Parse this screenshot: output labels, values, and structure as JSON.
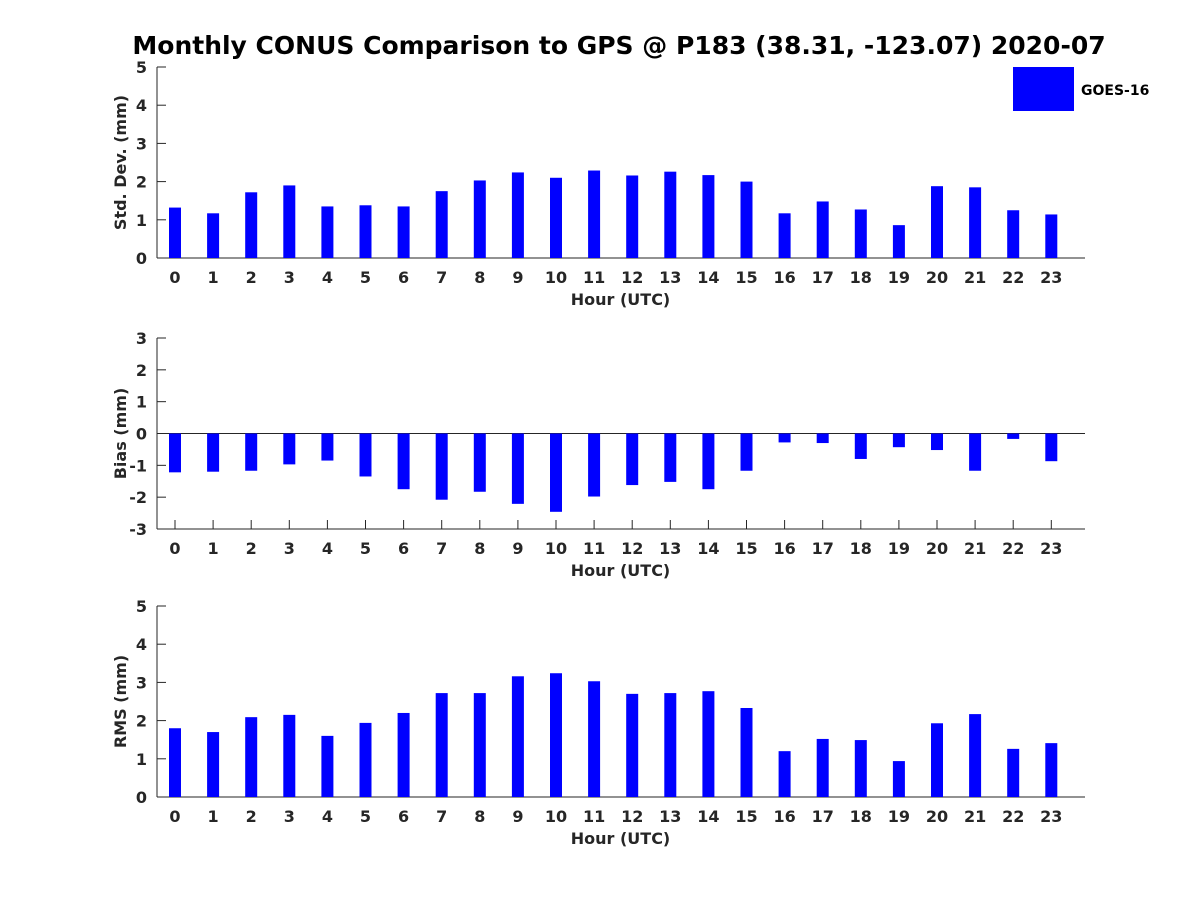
{
  "figure_title": "Monthly CONUS Comparison to GPS @ P183 (38.31, -123.07) 2020-07",
  "legend": {
    "label": "GOES-16",
    "color": "#0000FF"
  },
  "chart_data": [
    {
      "type": "bar",
      "name": "std-dev",
      "title": "Monthly CONUS Comparison to GPS @ P183 (38.31, -123.07) 2020-07",
      "xlabel": "Hour (UTC)",
      "ylabel": "Std. Dev. (mm)",
      "ylim": [
        0,
        5
      ],
      "yticks": [
        0,
        1,
        2,
        3,
        4,
        5
      ],
      "categories": [
        "0",
        "1",
        "2",
        "3",
        "4",
        "5",
        "6",
        "7",
        "8",
        "9",
        "10",
        "11",
        "12",
        "13",
        "14",
        "15",
        "16",
        "17",
        "18",
        "19",
        "20",
        "21",
        "22",
        "23"
      ],
      "series": [
        {
          "name": "GOES-16",
          "color": "#0000FF",
          "values": [
            1.32,
            1.17,
            1.72,
            1.9,
            1.35,
            1.38,
            1.35,
            1.75,
            2.03,
            2.24,
            2.1,
            2.29,
            2.16,
            2.26,
            2.17,
            2.0,
            1.17,
            1.48,
            1.27,
            0.86,
            1.88,
            1.85,
            1.25,
            1.14
          ]
        }
      ]
    },
    {
      "type": "bar",
      "name": "bias",
      "title": "",
      "xlabel": "Hour (UTC)",
      "ylabel": "Bias (mm)",
      "ylim": [
        -3,
        3
      ],
      "yticks": [
        -3,
        -2,
        -1,
        0,
        1,
        2,
        3
      ],
      "categories": [
        "0",
        "1",
        "2",
        "3",
        "4",
        "5",
        "6",
        "7",
        "8",
        "9",
        "10",
        "11",
        "12",
        "13",
        "14",
        "15",
        "16",
        "17",
        "18",
        "19",
        "20",
        "21",
        "22",
        "23"
      ],
      "series": [
        {
          "name": "GOES-16",
          "color": "#0000FF",
          "values": [
            -1.22,
            -1.2,
            -1.17,
            -0.97,
            -0.85,
            -1.35,
            -1.75,
            -2.08,
            -1.83,
            -2.21,
            -2.46,
            -1.98,
            -1.62,
            -1.52,
            -1.75,
            -1.17,
            -0.28,
            -0.3,
            -0.8,
            -0.43,
            -0.52,
            -1.17,
            -0.17,
            -0.87
          ]
        }
      ]
    },
    {
      "type": "bar",
      "name": "rms",
      "title": "",
      "xlabel": "Hour (UTC)",
      "ylabel": "RMS (mm)",
      "ylim": [
        0,
        5
      ],
      "yticks": [
        0,
        1,
        2,
        3,
        4,
        5
      ],
      "categories": [
        "0",
        "1",
        "2",
        "3",
        "4",
        "5",
        "6",
        "7",
        "8",
        "9",
        "10",
        "11",
        "12",
        "13",
        "14",
        "15",
        "16",
        "17",
        "18",
        "19",
        "20",
        "21",
        "22",
        "23"
      ],
      "series": [
        {
          "name": "GOES-16",
          "color": "#0000FF",
          "values": [
            1.8,
            1.7,
            2.09,
            2.15,
            1.6,
            1.94,
            2.2,
            2.72,
            2.72,
            3.16,
            3.24,
            3.03,
            2.7,
            2.72,
            2.77,
            2.33,
            1.2,
            1.52,
            1.49,
            0.94,
            1.93,
            2.17,
            1.26,
            1.41
          ]
        }
      ]
    }
  ]
}
